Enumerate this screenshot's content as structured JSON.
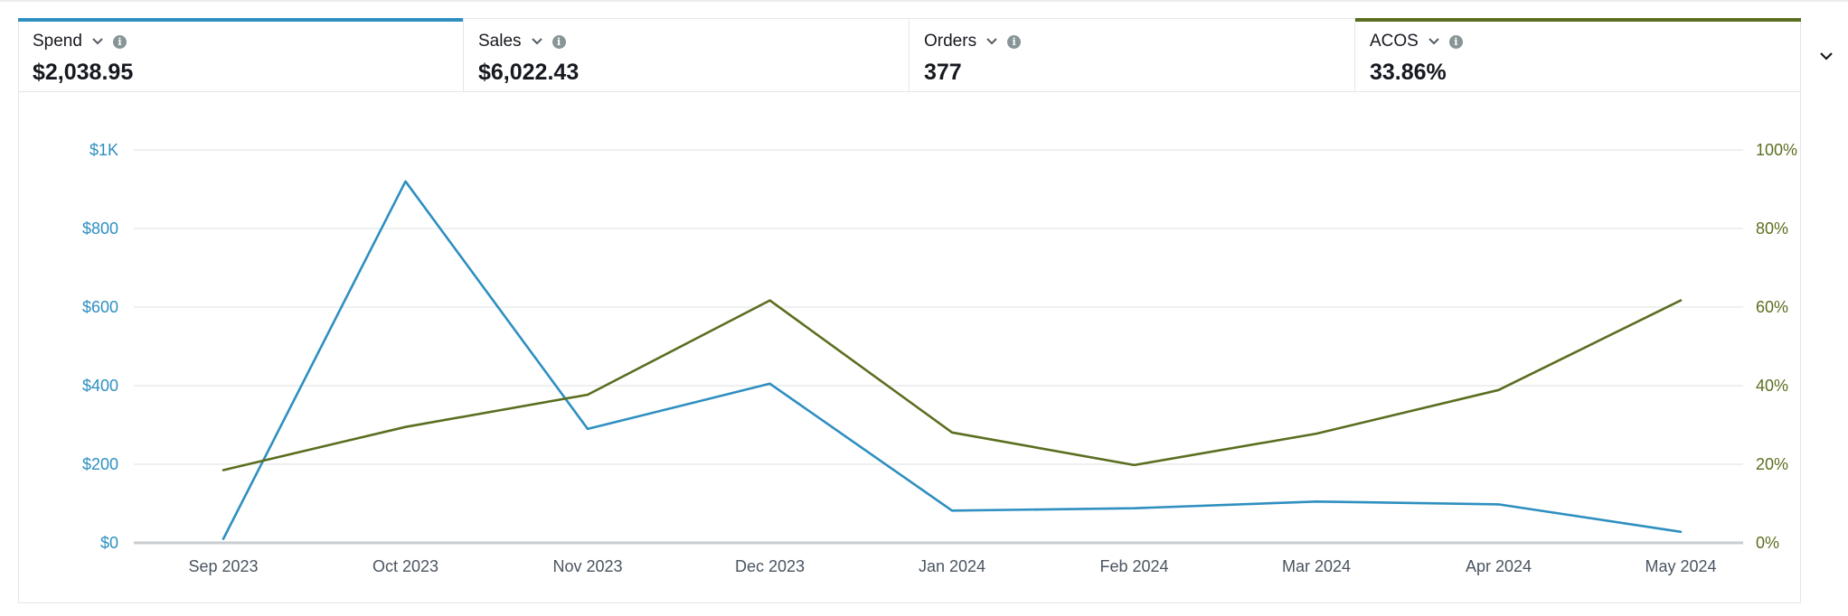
{
  "metrics": [
    {
      "label": "Spend",
      "value": "$2,038.95",
      "selected": true,
      "accent": "#2e8fc0"
    },
    {
      "label": "Sales",
      "value": "$6,022.43",
      "selected": false,
      "accent": ""
    },
    {
      "label": "Orders",
      "value": "377",
      "selected": false,
      "accent": ""
    },
    {
      "label": "ACOS",
      "value": "33.86%",
      "selected": true,
      "accent": "#5a6e1f"
    }
  ],
  "colors": {
    "spend": "#2e8fc0",
    "acos": "#5a6e1f",
    "grid": "#e3e6e8",
    "axis_text_x": "#4a5460"
  },
  "icons": {
    "metric_dropdown": "chevron-down-icon",
    "metric_info": "info-icon",
    "collapse": "chevron-down-icon"
  },
  "chart_data": {
    "type": "line",
    "x": [
      "Sep 2023",
      "Oct 2023",
      "Nov 2023",
      "Dec 2023",
      "Jan 2024",
      "Feb 2024",
      "Mar 2024",
      "Apr 2024",
      "May 2024"
    ],
    "series": [
      {
        "name": "Spend",
        "axis": "left",
        "values": [
          10,
          920,
          290,
          405,
          82,
          88,
          105,
          98,
          28
        ]
      },
      {
        "name": "ACOS",
        "axis": "right",
        "values": [
          18.5,
          29.5,
          37.7,
          61.7,
          28.1,
          19.8,
          27.8,
          38.9,
          61.7
        ]
      }
    ],
    "y_left": {
      "range": [
        0,
        1000
      ],
      "ticks": [
        0,
        200,
        400,
        600,
        800,
        1000
      ],
      "tick_labels": [
        "$0",
        "$200",
        "$400",
        "$600",
        "$800",
        "$1K"
      ]
    },
    "y_right": {
      "range": [
        0,
        100
      ],
      "ticks": [
        0,
        20,
        40,
        60,
        80,
        100
      ],
      "tick_labels": [
        "0%",
        "20%",
        "40%",
        "60%",
        "80%",
        "100%"
      ]
    },
    "grid": true,
    "title": "",
    "xlabel": "",
    "ylabel": ""
  }
}
